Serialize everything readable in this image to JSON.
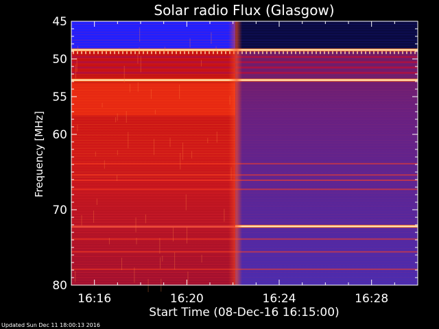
{
  "chart_data": {
    "type": "heatmap",
    "title": "Solar radio Flux (Glasgow)",
    "xlabel": "Start Time (08-Dec-16 16:15:00)",
    "ylabel": "Frequency [MHz]",
    "y_ticks": [
      "45",
      "50",
      "55",
      "60",
      "70",
      "80"
    ],
    "y_tick_values": [
      45,
      50,
      55,
      60,
      70,
      80
    ],
    "x_ticks": [
      "16:16",
      "16:20",
      "16:24",
      "16:28"
    ],
    "x_tick_minutes": [
      1,
      5,
      9,
      13
    ],
    "xlim_minutes": [
      0,
      15
    ],
    "ylim": [
      45,
      80
    ],
    "event_minute": 7.1,
    "bright_bands_mhz": [
      48.8,
      52.8
    ],
    "late_band_mhz": 72.2,
    "colors": {
      "blue": "#2020ff",
      "dark_blue": "#0a0a40",
      "red": "#c81010",
      "orange": "#ff7a20",
      "purple": "#5a2aa8",
      "light": "#ffe8c0"
    }
  },
  "footer": "Updated Sun Dec 11 18:00:13 2016"
}
